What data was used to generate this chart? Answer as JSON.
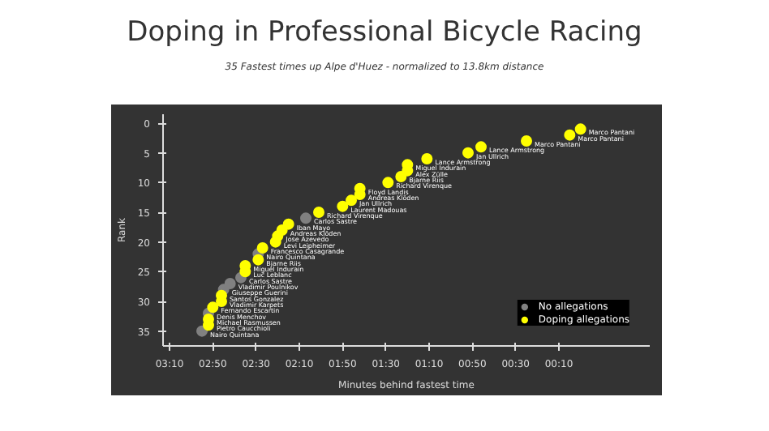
{
  "chart_data": {
    "type": "scatter",
    "title": "Doping in Professional Bicycle Racing",
    "subtitle": "35 Fastest times up Alpe d'Huez - normalized to 13.8km distance",
    "xlabel": "Minutes behind fastest time",
    "ylabel": "Rank",
    "marker": "circle",
    "grid": false,
    "legend": "bottom right",
    "xlim": [
      193,
      -32
    ],
    "ylim": [
      37.5,
      -1.5
    ],
    "xticks": [
      {
        "value": 190,
        "label": "03:10"
      },
      {
        "value": 170,
        "label": "02:50"
      },
      {
        "value": 150,
        "label": "02:30"
      },
      {
        "value": 130,
        "label": "02:10"
      },
      {
        "value": 110,
        "label": "01:50"
      },
      {
        "value": 90,
        "label": "01:30"
      },
      {
        "value": 70,
        "label": "01:10"
      },
      {
        "value": 50,
        "label": "00:50"
      },
      {
        "value": 30,
        "label": "00:30"
      },
      {
        "value": 10,
        "label": "00:10"
      }
    ],
    "yticks": [
      0,
      5,
      10,
      15,
      20,
      25,
      30,
      35
    ],
    "series": [
      {
        "name": "No allegations",
        "color": "#808080",
        "x": [
          127,
          149,
          157,
          162,
          165,
          172,
          175
        ],
        "values": [
          16,
          22,
          26,
          27,
          28,
          32,
          35
        ]
      },
      {
        "name": "Doping allegations",
        "color": "#ffff00",
        "x": [
          0,
          5,
          25,
          46,
          52,
          71,
          80,
          80,
          83,
          89,
          102,
          102,
          106,
          110,
          121,
          135,
          138,
          140,
          141,
          147,
          149,
          155,
          155,
          166,
          166,
          170,
          172,
          172
        ],
        "values": [
          1,
          2,
          3,
          4,
          5,
          6,
          7,
          8,
          9,
          10,
          11,
          12,
          13,
          14,
          15,
          17,
          18,
          19,
          20,
          21,
          23,
          24,
          25,
          29,
          30,
          31,
          33,
          34
        ]
      }
    ],
    "annotations": [
      {
        "text": "Marco Pantani",
        "x": 0,
        "y": 1
      },
      {
        "text": "Marco Pantani",
        "x": 5,
        "y": 2
      },
      {
        "text": "Marco Pantani",
        "x": 25,
        "y": 3
      },
      {
        "text": "Lance Armstrong",
        "x": 46,
        "y": 4
      },
      {
        "text": "Jan Ullrich",
        "x": 52,
        "y": 5
      },
      {
        "text": "Lance Armstrong",
        "x": 71,
        "y": 6
      },
      {
        "text": "Miguel Indurain",
        "x": 80,
        "y": 7
      },
      {
        "text": "Alex Zülle",
        "x": 80,
        "y": 8
      },
      {
        "text": "Bjarne Riis",
        "x": 83,
        "y": 9
      },
      {
        "text": "Richard Virenque",
        "x": 89,
        "y": 10
      },
      {
        "text": "Floyd Landis",
        "x": 102,
        "y": 11
      },
      {
        "text": "Andreas Klöden",
        "x": 102,
        "y": 12
      },
      {
        "text": "Jan Ullrich",
        "x": 106,
        "y": 13
      },
      {
        "text": "Laurent Madouas",
        "x": 110,
        "y": 14
      },
      {
        "text": "Richard Virenque",
        "x": 121,
        "y": 15
      },
      {
        "text": "Carlos Sastre",
        "x": 127,
        "y": 16
      },
      {
        "text": "Iban Mayo",
        "x": 135,
        "y": 17
      },
      {
        "text": "Andreas Klöden",
        "x": 138,
        "y": 18
      },
      {
        "text": "Jose Azevedo",
        "x": 140,
        "y": 19
      },
      {
        "text": "Levi Leipheimer",
        "x": 141,
        "y": 20
      },
      {
        "text": "Francesco Casagrande",
        "x": 147,
        "y": 21
      },
      {
        "text": "Nairo Quintana",
        "x": 149,
        "y": 22
      },
      {
        "text": "Bjarne Riis",
        "x": 149,
        "y": 23
      },
      {
        "text": "Miguel Indurain",
        "x": 155,
        "y": 24
      },
      {
        "text": "Luc Leblanc",
        "x": 155,
        "y": 25
      },
      {
        "text": "Carlos Sastre",
        "x": 157,
        "y": 26
      },
      {
        "text": "Vladimir Poulnikov",
        "x": 162,
        "y": 27
      },
      {
        "text": "Giuseppe Guerini",
        "x": 165,
        "y": 28
      },
      {
        "text": "Santos Gonzalez",
        "x": 166,
        "y": 29
      },
      {
        "text": "Vladimir Karpets",
        "x": 166,
        "y": 30
      },
      {
        "text": "Fernando Escartin",
        "x": 170,
        "y": 31
      },
      {
        "text": "Denis Menchov",
        "x": 172,
        "y": 32
      },
      {
        "text": "Michael Rasmussen",
        "x": 172,
        "y": 33
      },
      {
        "text": "Pietro Caucchioli",
        "x": 172,
        "y": 34
      },
      {
        "text": "Nairo Quintana",
        "x": 175,
        "y": 35
      }
    ]
  }
}
